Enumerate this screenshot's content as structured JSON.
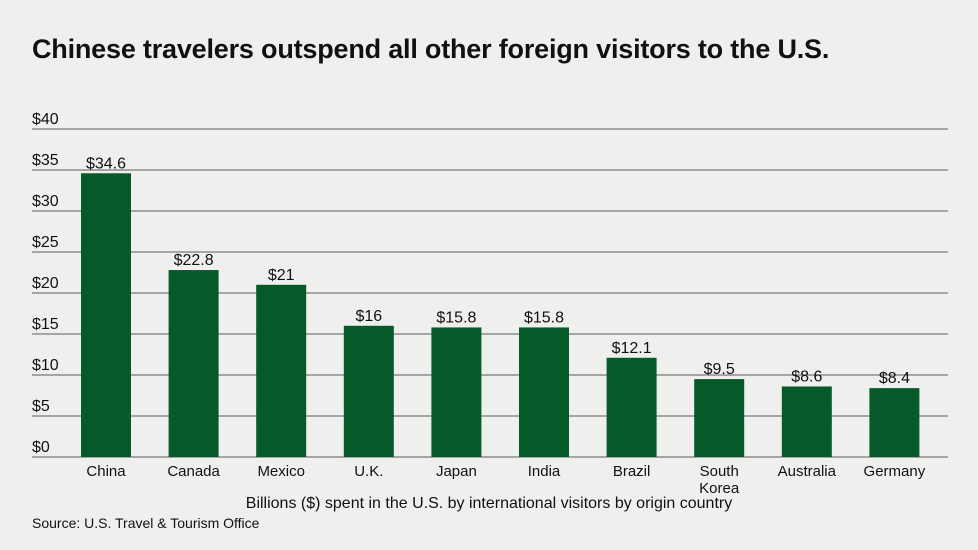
{
  "title": "Chinese travelers outspend all other foreign visitors to the U.S.",
  "source": "Source: U.S. Travel & Tourism Office",
  "colors": {
    "bar": "#065a2a",
    "grid": "#5a5a5a",
    "background": "#eff0ee"
  },
  "chart_data": {
    "type": "bar",
    "categories": [
      "China",
      "Canada",
      "Mexico",
      "U.K.",
      "Japan",
      "India",
      "Brazil",
      "South Korea",
      "Australia",
      "Germany"
    ],
    "values": [
      34.6,
      22.8,
      21,
      16,
      15.8,
      15.8,
      12.1,
      9.5,
      8.6,
      8.4
    ],
    "data_labels": [
      "$34.6",
      "$22.8",
      "$21",
      "$16",
      "$15.8",
      "$15.8",
      "$12.1",
      "$9.5",
      "$8.6",
      "$8.4"
    ],
    "title": "Chinese travelers outspend all other foreign visitors to the U.S.",
    "xlabel": "Billions ($) spent in the U.S. by international visitors by origin country",
    "ylabel": "",
    "ylim": [
      0,
      40
    ],
    "yticks": [
      0,
      5,
      10,
      15,
      20,
      25,
      30,
      35,
      40
    ],
    "ytick_labels": [
      "$0",
      "$5",
      "$10",
      "$15",
      "$20",
      "$25",
      "$30",
      "$35",
      "$40"
    ],
    "grid": true,
    "legend": "none"
  }
}
